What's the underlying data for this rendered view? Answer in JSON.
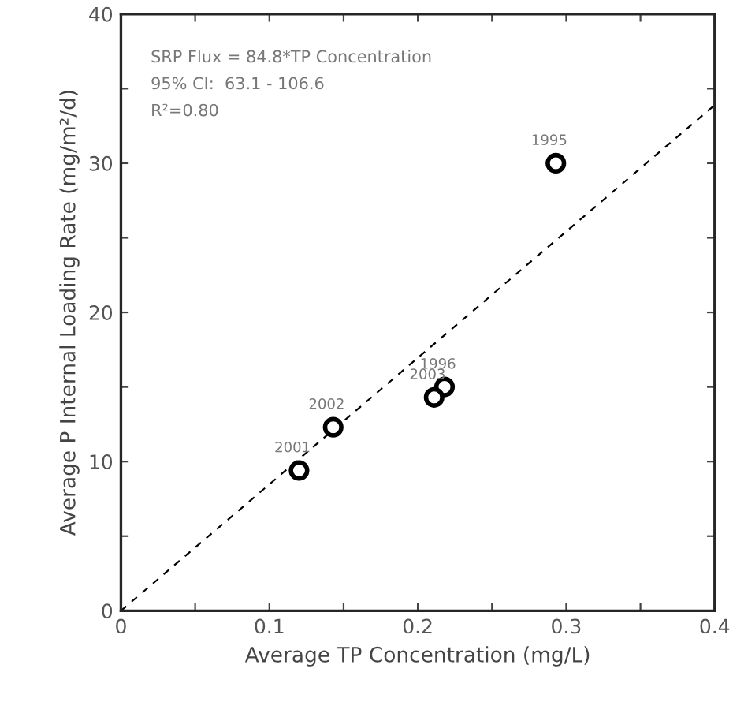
{
  "chart_data": {
    "type": "scatter",
    "xlabel": "Average TP Concentration (mg/L)",
    "ylabel": "Average P Internal Loading Rate (mg/m²/d)",
    "series": [
      {
        "color": "#000000",
        "marker": "circle",
        "x": [
          0.293,
          0.218,
          0.211,
          0.143,
          0.12
        ],
        "values": [
          30,
          15,
          14.3,
          12.3,
          9.4
        ]
      },
      {
        "type": "line",
        "color": "#000000",
        "line_style": "dashed",
        "marker": "none",
        "x": [
          0,
          0.4
        ],
        "values": [
          0,
          33.9
        ]
      }
    ],
    "annotations": [
      "SRP Flux = 84.8*TP Concentration",
      "95% CI:  63.1 - 106.6",
      "R²=0.80",
      {
        "text": "1995",
        "x": 0.293,
        "y": 30
      },
      {
        "text": "1996",
        "x": 0.218,
        "y": 15
      },
      {
        "text": "2003",
        "x": 0.211,
        "y": 14.3
      },
      {
        "text": "2002",
        "x": 0.143,
        "y": 12.3
      },
      {
        "text": "2001",
        "x": 0.12,
        "y": 9.4
      }
    ],
    "xlim": [
      0,
      0.4
    ],
    "ylim": [
      0,
      40
    ],
    "xticks": [
      0,
      {
        "value": 0.05,
        "label": null
      },
      0.1,
      {
        "value": 0.15,
        "label": null
      },
      0.2,
      {
        "value": 0.25,
        "label": null
      },
      0.3,
      {
        "value": 0.35,
        "label": null
      },
      0.4
    ],
    "yticks": [
      0,
      {
        "value": 5,
        "label": null
      },
      10,
      {
        "value": 15,
        "label": null
      },
      20,
      {
        "value": 25,
        "label": null
      },
      30,
      {
        "value": 35,
        "label": null
      },
      40
    ],
    "grid": false,
    "legend": false
  }
}
